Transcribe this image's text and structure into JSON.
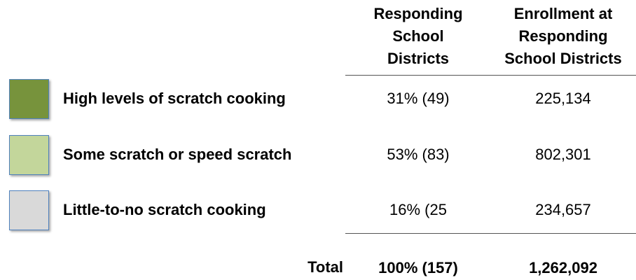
{
  "table": {
    "columns": [
      [
        "Responding",
        "School",
        "Districts"
      ],
      [
        "Enrollment at",
        "Responding",
        "School Districts"
      ]
    ],
    "rows": [
      {
        "color": "#77933c",
        "label": "High levels of scratch cooking",
        "districts": "31% (49)",
        "enrollment": "225,134"
      },
      {
        "color": "#c3d69b",
        "label": "Some scratch or speed scratch",
        "districts": "53% (83)",
        "enrollment": "802,301"
      },
      {
        "color": "#d9d9d9",
        "label": "Little-to-no scratch cooking",
        "districts": "16% (25",
        "enrollment": "234,657"
      }
    ],
    "total": {
      "label": "Total",
      "districts": "100% (157)",
      "enrollment": "1,262,092"
    }
  }
}
